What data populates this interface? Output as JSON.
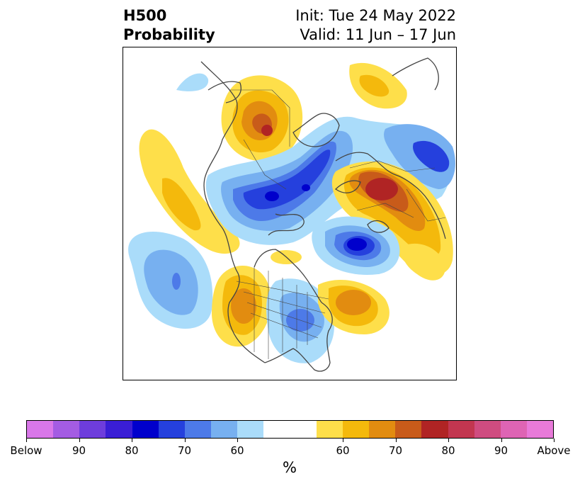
{
  "header": {
    "title_line1": "H500",
    "title_line2": "Probability",
    "init_text": "Init: Tue 24 May 2022",
    "valid_text": "Valid: 11 Jun – 17 Jun"
  },
  "colorbar": {
    "unit_label": "%",
    "colors": [
      "#d977e9",
      "#a45ce3",
      "#6e3ddc",
      "#3a1ed5",
      "#0000cc",
      "#2540dd",
      "#4d7ae8",
      "#77b0f0",
      "#aadcfa",
      "#ffffff",
      "#ffffff",
      "#fedf4a",
      "#f4b90c",
      "#e28c10",
      "#c85b1a",
      "#b02424",
      "#c23650",
      "#cf4c80",
      "#de64b4",
      "#e87ad9"
    ],
    "tick_labels": [
      "Below",
      "90",
      "80",
      "70",
      "60",
      "60",
      "70",
      "80",
      "90",
      "Above"
    ]
  },
  "palette": {
    "blue_60": "#aadcfa",
    "blue_65": "#77b0f0",
    "blue_70": "#4d7ae8",
    "blue_75": "#2540dd",
    "blue_80": "#0000cc",
    "orange_60": "#fedf4a",
    "orange_65": "#f4b90c",
    "orange_70": "#e28c10",
    "orange_75": "#c85b1a",
    "orange_80": "#b02424",
    "coastline": "#444444"
  }
}
